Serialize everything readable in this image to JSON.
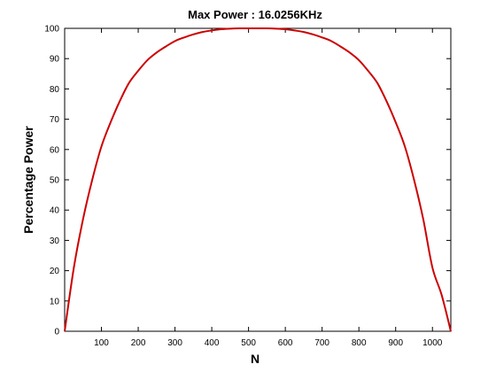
{
  "chart_data": {
    "type": "line",
    "title": "Max Power : 16.0256KHz",
    "xlabel": "N",
    "ylabel": "Percentage Power",
    "xlim": [
      0,
      1050
    ],
    "ylim": [
      0,
      100
    ],
    "x_ticks": [
      "100",
      "200",
      "300",
      "400",
      "500",
      "600",
      "700",
      "800",
      "900",
      "1000"
    ],
    "x_tick_values": [
      100,
      200,
      300,
      400,
      500,
      600,
      700,
      800,
      900,
      1000
    ],
    "y_ticks": [
      "0",
      "10",
      "20",
      "30",
      "40",
      "50",
      "60",
      "70",
      "80",
      "90",
      "100"
    ],
    "y_tick_values": [
      0,
      10,
      20,
      30,
      40,
      50,
      60,
      70,
      80,
      90,
      100
    ],
    "grid": false,
    "series": [
      {
        "color": "#cc0000",
        "x": [
          0,
          25,
          50,
          75,
          100,
          125,
          150,
          175,
          200,
          225,
          250,
          275,
          300,
          325,
          350,
          375,
          400,
          425,
          450,
          475,
          500,
          525,
          550,
          575,
          600,
          625,
          650,
          675,
          700,
          725,
          750,
          775,
          800,
          825,
          850,
          875,
          900,
          925,
          950,
          975,
          1000,
          1025,
          1050
        ],
        "y": [
          0,
          21,
          37,
          50,
          61,
          69,
          76,
          82,
          86,
          89.5,
          92,
          94,
          95.8,
          97,
          98,
          98.8,
          99.3,
          99.7,
          99.9,
          100,
          100,
          100,
          100,
          99.9,
          99.7,
          99.3,
          98.8,
          98,
          97,
          95.8,
          94,
          92,
          89.5,
          86,
          82,
          76,
          69,
          61,
          50,
          37,
          21,
          12,
          0
        ]
      }
    ]
  }
}
